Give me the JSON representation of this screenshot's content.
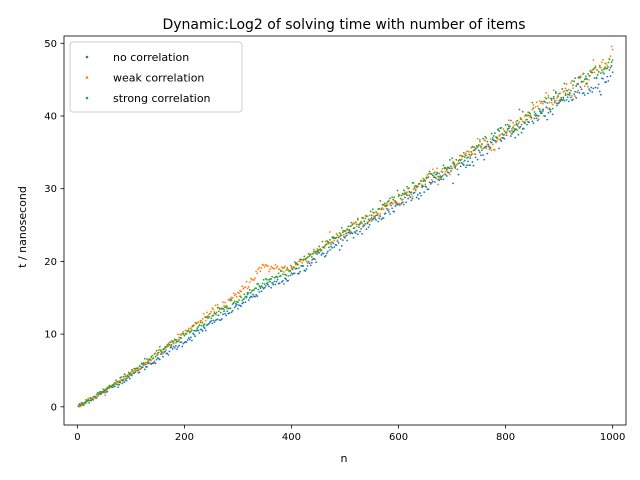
{
  "chart_data": {
    "type": "scatter",
    "title": "Dynamic:Log2 of solving time with number of items",
    "xlabel": "n",
    "ylabel": "t / nanosecond",
    "xlim": [
      -25,
      1025
    ],
    "ylim": [
      -2.5,
      51
    ],
    "xticks": [
      0,
      200,
      400,
      600,
      800,
      1000
    ],
    "yticks": [
      0,
      10,
      20,
      30,
      40,
      50
    ],
    "grid": false,
    "legend_position": "top-left",
    "series": [
      {
        "name": "no correlation",
        "color": "#1f77b4",
        "x": [
          2,
          50,
          100,
          150,
          200,
          250,
          300,
          350,
          400,
          450,
          500,
          550,
          600,
          650,
          700,
          750,
          800,
          850,
          900,
          950,
          1000
        ],
        "y": [
          0.1,
          2.0,
          4.3,
          6.6,
          9.0,
          11.4,
          13.9,
          16.3,
          18.0,
          20.7,
          23.0,
          25.4,
          27.8,
          30.3,
          32.5,
          34.8,
          37.3,
          39.5,
          41.8,
          43.8,
          45.8
        ]
      },
      {
        "name": "weak correlation",
        "color": "#ff7f0e",
        "x": [
          2,
          50,
          100,
          150,
          200,
          250,
          300,
          345,
          400,
          450,
          500,
          550,
          600,
          650,
          700,
          750,
          800,
          850,
          900,
          950,
          1000
        ],
        "y": [
          0.1,
          2.1,
          4.6,
          7.2,
          10.2,
          12.9,
          15.4,
          19.2,
          19.0,
          21.6,
          24.1,
          26.0,
          28.3,
          31.0,
          33.0,
          35.6,
          37.6,
          40.8,
          43.0,
          45.0,
          48.8
        ]
      },
      {
        "name": "strong correlation",
        "color": "#2ca02c",
        "x": [
          2,
          50,
          100,
          150,
          200,
          250,
          300,
          350,
          400,
          450,
          500,
          550,
          600,
          650,
          700,
          750,
          800,
          850,
          900,
          950,
          1000
        ],
        "y": [
          0.1,
          2.2,
          4.8,
          7.3,
          9.9,
          12.4,
          14.6,
          17.0,
          19.0,
          21.6,
          24.2,
          26.5,
          29.1,
          31.3,
          33.2,
          35.6,
          38.3,
          40.5,
          42.8,
          45.2,
          47.2
        ]
      }
    ]
  }
}
